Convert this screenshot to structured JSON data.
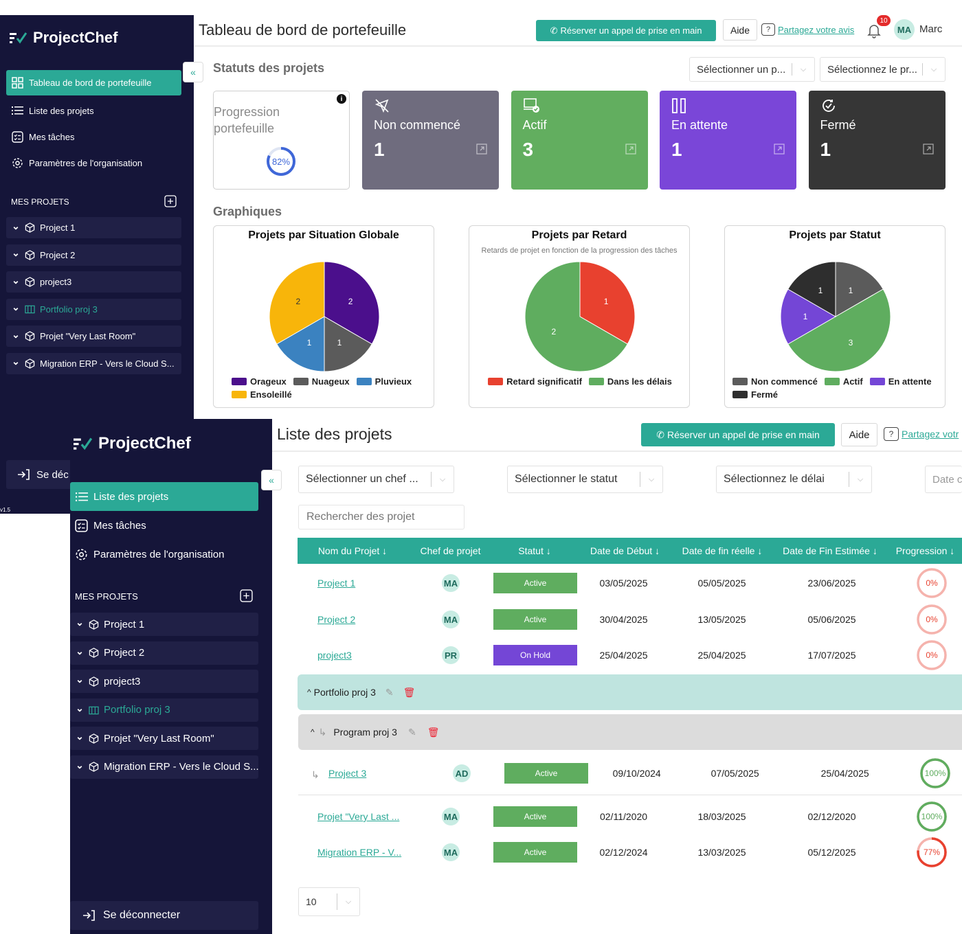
{
  "app": {
    "name": "ProjectChef",
    "version": "v1.5"
  },
  "dashboard": {
    "title": "Tableau de bord de portefeuille",
    "header": {
      "book_call": "Réserver un appel de prise en main",
      "help": "Aide",
      "feedback": "Partagez votre avis",
      "notif_count": "10",
      "user_initials": "MA",
      "user_name": "Marc"
    },
    "sidebar": {
      "nav": [
        {
          "label": "Tableau de bord de portefeuille",
          "icon": "grid-icon",
          "active": true
        },
        {
          "label": "Liste des projets",
          "icon": "list-icon",
          "active": false
        },
        {
          "label": "Mes tâches",
          "icon": "tasks-icon",
          "active": false
        },
        {
          "label": "Paramètres de l'organisation",
          "icon": "gear-icon",
          "active": false
        }
      ],
      "projects_title": "MES PROJETS",
      "projects": [
        {
          "label": "Project 1",
          "type": "project"
        },
        {
          "label": "Project 2",
          "type": "project"
        },
        {
          "label": "project3",
          "type": "project"
        },
        {
          "label": "Portfolio proj 3",
          "type": "portfolio"
        },
        {
          "label": "Projet \"Very Last Room\"",
          "type": "project"
        },
        {
          "label": "Migration ERP - Vers le Cloud S...",
          "type": "project"
        }
      ],
      "logout": "Se déc"
    },
    "statuses_title": "Statuts des projets",
    "filters": {
      "manager": "Sélectionner un p...",
      "project": "Sélectionnez le pr..."
    },
    "progress_card": {
      "label": "Progression portefeuille",
      "value": "82%",
      "fraction": 0.82
    },
    "status_cards": [
      {
        "label": "Non commencé",
        "value": "1",
        "color": "#6f6c7e",
        "icon": "no-send-icon"
      },
      {
        "label": "Actif",
        "value": "3",
        "color": "#62ae5f",
        "icon": "laptop-check-icon"
      },
      {
        "label": "En attente",
        "value": "1",
        "color": "#7a46d8",
        "icon": "pause-icon"
      },
      {
        "label": "Fermé",
        "value": "1",
        "color": "#363636",
        "icon": "check-cycle-icon"
      }
    ],
    "charts_title": "Graphiques"
  },
  "chart_data": [
    {
      "type": "pie",
      "title": "Projets par Situation Globale",
      "series": [
        {
          "name": "Orageux",
          "value": 2,
          "color": "#4b0f8c"
        },
        {
          "name": "Nuageux",
          "value": 1,
          "color": "#5b5b5b"
        },
        {
          "name": "Pluvieux",
          "value": 1,
          "color": "#3b82c0"
        },
        {
          "name": "Ensoleillé",
          "value": 2,
          "color": "#f8b50a"
        }
      ]
    },
    {
      "type": "pie",
      "title": "Projets par Retard",
      "subtitle": "Retards de projet en fonction de la progression des tâches",
      "series": [
        {
          "name": "Retard significatif",
          "value": 1,
          "color": "#e8412f"
        },
        {
          "name": "Dans les délais",
          "value": 2,
          "color": "#5fad5f"
        }
      ]
    },
    {
      "type": "pie",
      "title": "Projets par Statut",
      "series": [
        {
          "name": "Non commencé",
          "value": 1,
          "color": "#5b5b5b"
        },
        {
          "name": "Actif",
          "value": 3,
          "color": "#5fad5f"
        },
        {
          "name": "En attente",
          "value": 1,
          "color": "#7446d6"
        },
        {
          "name": "Fermé",
          "value": 1,
          "color": "#2e2e2e"
        }
      ]
    }
  ],
  "projects_list": {
    "title": "Liste des projets",
    "header": {
      "book_call": "Réserver un appel de prise en main",
      "help": "Aide",
      "feedback": "Partagez votr"
    },
    "sidebar": {
      "nav": [
        {
          "label": "Liste des projets",
          "icon": "list-icon",
          "active": true
        },
        {
          "label": "Mes tâches",
          "icon": "tasks-icon",
          "active": false
        },
        {
          "label": "Paramètres de l'organisation",
          "icon": "gear-icon",
          "active": false
        }
      ],
      "projects_title": "MES PROJETS",
      "projects": [
        {
          "label": "Project 1",
          "type": "project"
        },
        {
          "label": "Project 2",
          "type": "project"
        },
        {
          "label": "project3",
          "type": "project"
        },
        {
          "label": "Portfolio proj 3",
          "type": "portfolio"
        },
        {
          "label": "Projet \"Very Last Room\"",
          "type": "project"
        },
        {
          "label": "Migration ERP - Vers le Cloud S...",
          "type": "project"
        }
      ],
      "logout": "Se déconnecter"
    },
    "filters": {
      "manager": "Sélectionner un chef ...",
      "status": "Sélectionner le statut",
      "deadline": "Sélectionnez le délai",
      "date": "Date c",
      "search_placeholder": "Rechercher des projet"
    },
    "columns": [
      "Nom du Projet ↓",
      "Chef de projet",
      "Statut ↓",
      "Date de Début ↓",
      "Date de fin réelle ↓",
      "Date de Fin Estimée ↓",
      "Progression ↓"
    ],
    "rows": [
      {
        "name": "Project 1",
        "manager": "MA",
        "status": "Active",
        "start": "03/05/2025",
        "end_real": "05/05/2025",
        "end_est": "23/06/2025",
        "progress": "0%",
        "fraction": 0
      },
      {
        "name": "Project 2",
        "manager": "MA",
        "status": "Active",
        "start": "30/04/2025",
        "end_real": "13/05/2025",
        "end_est": "05/06/2025",
        "progress": "0%",
        "fraction": 0
      },
      {
        "name": "project3",
        "manager": "PR",
        "status": "On Hold",
        "start": "25/04/2025",
        "end_real": "25/04/2025",
        "end_est": "17/07/2025",
        "progress": "0%",
        "fraction": 0
      }
    ],
    "portfolio_group": {
      "label": "Portfolio proj 3"
    },
    "program_group": {
      "label": "Program proj 3"
    },
    "program_rows": [
      {
        "name": "Project 3",
        "manager": "AD",
        "status": "Active",
        "start": "09/10/2024",
        "end_real": "07/05/2025",
        "end_est": "25/04/2025",
        "progress": "100%",
        "fraction": 1
      }
    ],
    "other_rows": [
      {
        "name": "Projet \"Very Last ...",
        "manager": "MA",
        "status": "Active",
        "start": "02/11/2020",
        "end_real": "18/03/2025",
        "end_est": "02/12/2020",
        "progress": "100%",
        "fraction": 1
      },
      {
        "name": "Migration ERP - V...",
        "manager": "MA",
        "status": "Active",
        "start": "02/12/2024",
        "end_real": "13/03/2025",
        "end_est": "05/12/2025",
        "progress": "77%",
        "fraction": 0.77
      }
    ],
    "page_size": "10"
  }
}
